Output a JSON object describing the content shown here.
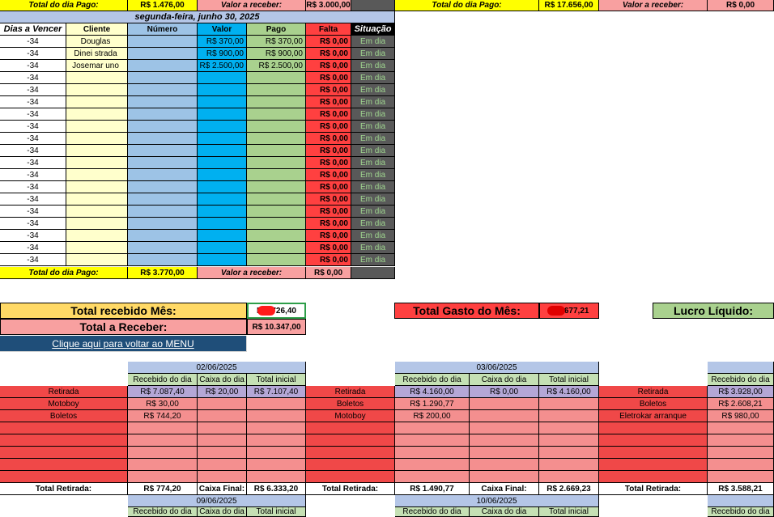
{
  "top_bar": {
    "left_paid_label": "Total do dia Pago:",
    "left_paid_value": "R$ 1.476,00",
    "left_receive_label": "Valor a receber:",
    "left_receive_value": "R$ 3.000,00",
    "right_paid_label": "Total do dia Pago:",
    "right_paid_value": "R$ 17.656,00",
    "right_receive_label": "Valor a receber:",
    "right_receive_value": "R$ 0,00"
  },
  "day_table": {
    "date_title": "segunda-feira, junho 30, 2025",
    "headers": [
      "Dias a Vencer",
      "Cliente",
      "Número",
      "Valor",
      "Pago",
      "Falta",
      "Situação"
    ],
    "rows": [
      {
        "dias": "-34",
        "cliente": "Douglas",
        "numero": "",
        "valor": "R$ 370,00",
        "pago": "R$ 370,00",
        "falta": "R$ 0,00",
        "situacao": "Em dia"
      },
      {
        "dias": "-34",
        "cliente": "Dinei strada",
        "numero": "",
        "valor": "R$ 900,00",
        "pago": "R$ 900,00",
        "falta": "R$ 0,00",
        "situacao": "Em dia"
      },
      {
        "dias": "-34",
        "cliente": "Josemar uno",
        "numero": "",
        "valor": "R$ 2.500,00",
        "pago": "R$ 2.500,00",
        "falta": "R$ 0,00",
        "situacao": "Em dia"
      },
      {
        "dias": "-34",
        "cliente": "",
        "numero": "",
        "valor": "",
        "pago": "",
        "falta": "R$ 0,00",
        "situacao": "Em dia"
      },
      {
        "dias": "-34",
        "cliente": "",
        "numero": "",
        "valor": "",
        "pago": "",
        "falta": "R$ 0,00",
        "situacao": "Em dia"
      },
      {
        "dias": "-34",
        "cliente": "",
        "numero": "",
        "valor": "",
        "pago": "",
        "falta": "R$ 0,00",
        "situacao": "Em dia"
      },
      {
        "dias": "-34",
        "cliente": "",
        "numero": "",
        "valor": "",
        "pago": "",
        "falta": "R$ 0,00",
        "situacao": "Em dia"
      },
      {
        "dias": "-34",
        "cliente": "",
        "numero": "",
        "valor": "",
        "pago": "",
        "falta": "R$ 0,00",
        "situacao": "Em dia"
      },
      {
        "dias": "-34",
        "cliente": "",
        "numero": "",
        "valor": "",
        "pago": "",
        "falta": "R$ 0,00",
        "situacao": "Em dia"
      },
      {
        "dias": "-34",
        "cliente": "",
        "numero": "",
        "valor": "",
        "pago": "",
        "falta": "R$ 0,00",
        "situacao": "Em dia"
      },
      {
        "dias": "-34",
        "cliente": "",
        "numero": "",
        "valor": "",
        "pago": "",
        "falta": "R$ 0,00",
        "situacao": "Em dia"
      },
      {
        "dias": "-34",
        "cliente": "",
        "numero": "",
        "valor": "",
        "pago": "",
        "falta": "R$ 0,00",
        "situacao": "Em dia"
      },
      {
        "dias": "-34",
        "cliente": "",
        "numero": "",
        "valor": "",
        "pago": "",
        "falta": "R$ 0,00",
        "situacao": "Em dia"
      },
      {
        "dias": "-34",
        "cliente": "",
        "numero": "",
        "valor": "",
        "pago": "",
        "falta": "R$ 0,00",
        "situacao": "Em dia"
      },
      {
        "dias": "-34",
        "cliente": "",
        "numero": "",
        "valor": "",
        "pago": "",
        "falta": "R$ 0,00",
        "situacao": "Em dia"
      },
      {
        "dias": "-34",
        "cliente": "",
        "numero": "",
        "valor": "",
        "pago": "",
        "falta": "R$ 0,00",
        "situacao": "Em dia"
      },
      {
        "dias": "-34",
        "cliente": "",
        "numero": "",
        "valor": "",
        "pago": "",
        "falta": "R$ 0,00",
        "situacao": "Em dia"
      },
      {
        "dias": "-34",
        "cliente": "",
        "numero": "",
        "valor": "",
        "pago": "",
        "falta": "R$ 0,00",
        "situacao": "Em dia"
      },
      {
        "dias": "-34",
        "cliente": "",
        "numero": "",
        "valor": "",
        "pago": "",
        "falta": "R$ 0,00",
        "situacao": "Em dia"
      }
    ],
    "footer_paid_label": "Total do dia Pago:",
    "footer_paid_value": "R$ 3.770,00",
    "footer_receive_label": "Valor a receber:",
    "footer_receive_value": "R$ 0,00"
  },
  "summary": {
    "total_recebido_label": "Total recebido Mês:",
    "total_recebido_value": "R$ .726,40",
    "total_receber_label": "Total a Receber:",
    "total_receber_value": "R$ 10.347,00",
    "menu_link": "Clique aqui para voltar ao MENU",
    "total_gasto_label": "Total Gasto do Mês:",
    "total_gasto_value": "R$ .677,21",
    "lucro_label": "Lucro Líquido:"
  },
  "cash_blocks": [
    {
      "date": "02/06/2025",
      "headers": [
        "Recebido do dia",
        "Caixa do dia",
        "Total inicial"
      ],
      "row1": {
        "label": "Retirada",
        "recebido": "R$ 7.087,40",
        "caixa": "R$ 20,00",
        "total": "R$ 7.107,40"
      },
      "items": [
        {
          "label": "Motoboy",
          "value": "R$ 30,00"
        },
        {
          "label": "Boletos",
          "value": "R$ 744,20"
        }
      ],
      "footer": {
        "retirada_label": "Total Retirada:",
        "retirada_value": "R$ 774,20",
        "caixa_label": "Caixa Final:",
        "caixa_value": "R$ 6.333,20"
      },
      "next_date": "09/06/2025"
    },
    {
      "date": "03/06/2025",
      "headers": [
        "Recebido do dia",
        "Caixa do dia",
        "Total inicial"
      ],
      "row1": {
        "label": "Retirada",
        "recebido": "R$ 4.160,00",
        "caixa": "R$ 0,00",
        "total": "R$ 4.160,00"
      },
      "items": [
        {
          "label": "Boletos",
          "value": "R$ 1.290,77"
        },
        {
          "label": "Motoboy",
          "value": "R$ 200,00"
        }
      ],
      "footer": {
        "retirada_label": "Total Retirada:",
        "retirada_value": "R$ 1.490,77",
        "caixa_label": "Caixa Final:",
        "caixa_value": "R$ 2.669,23"
      },
      "next_date": "10/06/2025"
    },
    {
      "date": "",
      "headers": [
        "Recebido do dia"
      ],
      "row1": {
        "label": "Retirada",
        "recebido": "R$ 3.928,00"
      },
      "items": [
        {
          "label": "Boletos",
          "value": "R$ 2.608,21"
        },
        {
          "label": "Eletrokar arranque",
          "value": "R$ 980,00"
        }
      ],
      "footer": {
        "retirada_label": "Total Retirada:",
        "retirada_value": "R$ 3.588,21"
      }
    }
  ],
  "next_headers": [
    "Recebido do dia",
    "Caixa do dia",
    "Total inicial"
  ]
}
